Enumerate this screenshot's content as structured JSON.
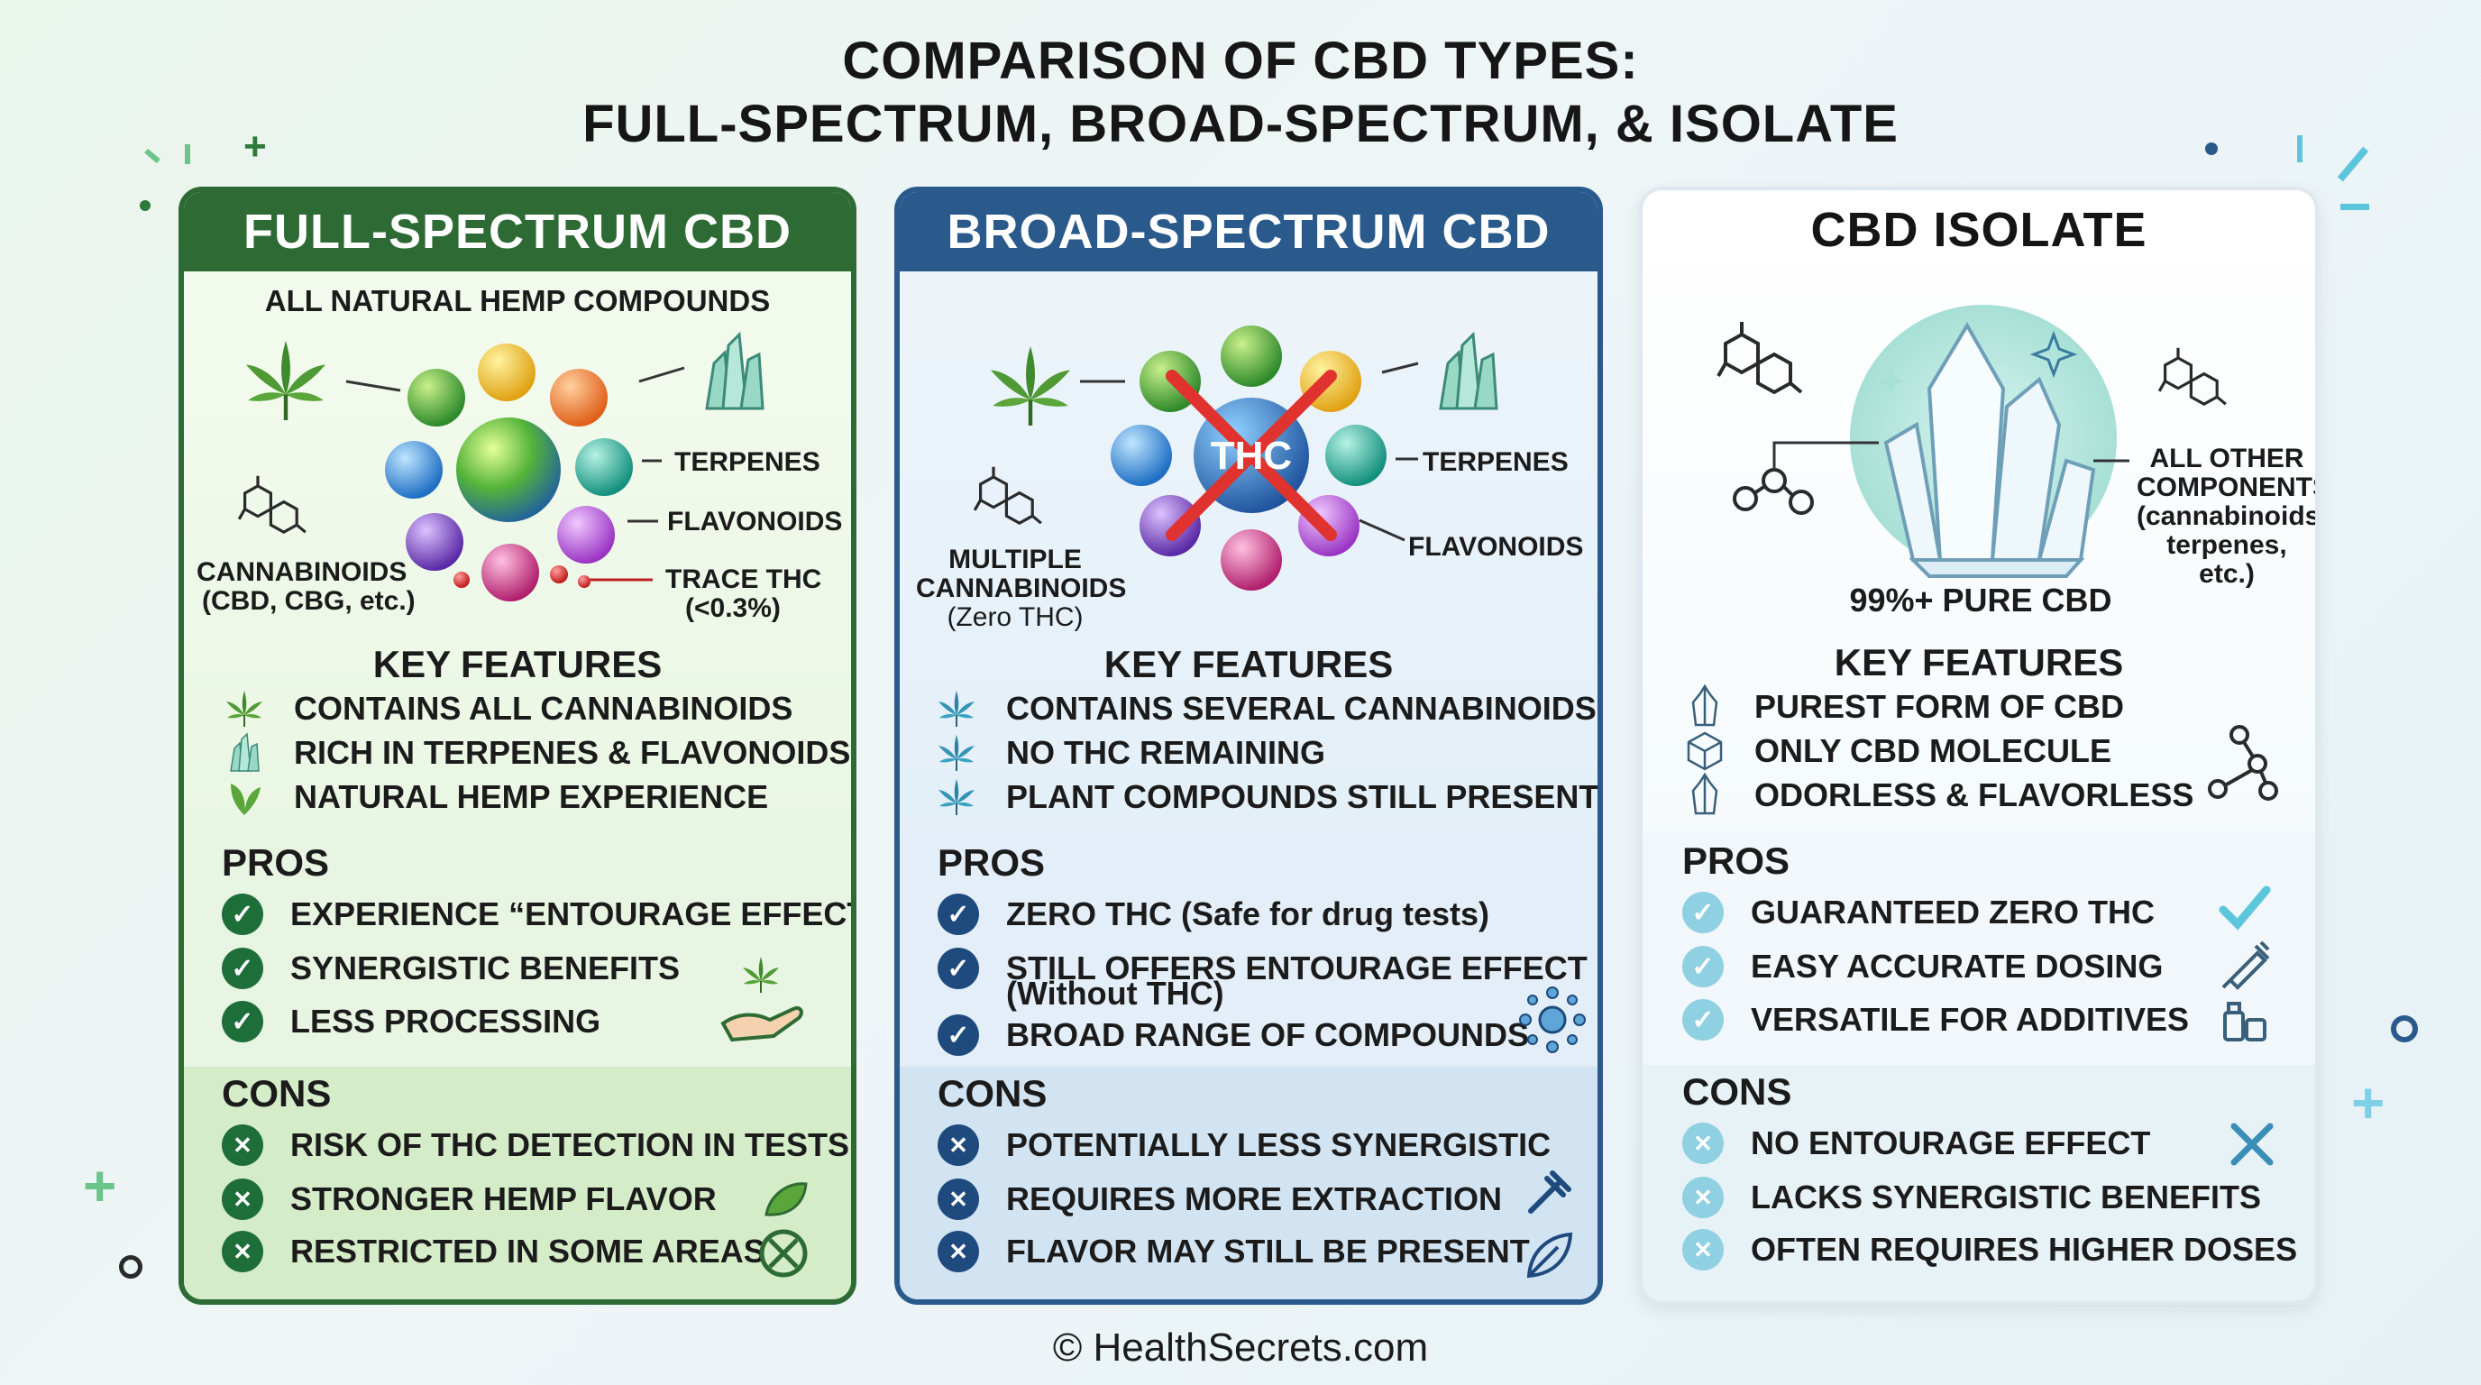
{
  "title": {
    "line1": "COMPARISON OF CBD TYPES:",
    "line2": "FULL-SPECTRUM, BROAD-SPECTRUM, & ISOLATE"
  },
  "colors": {
    "full_header": "#2e6b34",
    "broad_header": "#2a5a8c",
    "isolate_header": "#ffffff",
    "check_green": "#1e6e3a",
    "check_navy": "#1e4a7e",
    "check_light": "#8fd0e2"
  },
  "full": {
    "header": "FULL-SPECTRUM CBD",
    "subtitle": "ALL NATURAL HEMP COMPOUNDS",
    "labels": {
      "terpenes": "TERPENES",
      "flavonoids": "FLAVONOIDS",
      "trace_thc": "TRACE THC",
      "trace_thc_sub": "(<0.3%)",
      "cannabinoids": "CANNABINOIDS",
      "cannabinoids_sub": "(CBD, CBG, etc.)"
    },
    "key_features_title": "KEY FEATURES",
    "features": [
      "CONTAINS ALL CANNABINOIDS",
      "RICH IN TERPENES & FLAVONOIDS",
      "NATURAL HEMP EXPERIENCE"
    ],
    "pros_title": "PROS",
    "pros": [
      "EXPERIENCE “ENTOURAGE EFFECT”",
      "SYNERGISTIC BENEFITS",
      "LESS PROCESSING"
    ],
    "cons_title": "CONS",
    "cons": [
      "RISK OF THC DETECTION IN TESTS",
      "STRONGER HEMP FLAVOR",
      "RESTRICTED IN SOME AREAS"
    ]
  },
  "broad": {
    "header": "BROAD-SPECTRUM CBD",
    "thc_label": "THC",
    "labels": {
      "terpenes": "TERPENES",
      "flavonoids": "FLAVONOIDS",
      "multiple": "MULTIPLE",
      "cannabinoids": "CANNABINOIDS",
      "zero_thc": "(Zero THC)"
    },
    "key_features_title": "KEY FEATURES",
    "features": [
      "CONTAINS SEVERAL CANNABINOIDS",
      "NO THC REMAINING",
      "PLANT COMPOUNDS STILL PRESENT"
    ],
    "pros_title": "PROS",
    "pros": [
      "ZERO THC (Safe for drug tests)",
      "STILL OFFERS ENTOURAGE EFFECT",
      "BROAD RANGE OF COMPOUNDS"
    ],
    "pros_2_line2": "(Without THC)",
    "cons_title": "CONS",
    "cons": [
      "POTENTIALLY LESS SYNERGISTIC",
      "REQUIRES MORE EXTRACTION",
      "FLAVOR MAY STILL BE PRESENT"
    ]
  },
  "isolate": {
    "header": "CBD ISOLATE",
    "labels": {
      "all_other": "ALL OTHER",
      "components": "COMPONENTS",
      "cannabinoids_paren": "(cannabinoids,",
      "terpenes_paren": "terpenes, etc.)",
      "pure": "99%+ PURE CBD"
    },
    "key_features_title": "KEY FEATURES",
    "features": [
      "PUREST FORM OF CBD",
      "ONLY CBD MOLECULE",
      "ODORLESS & FLAVORLESS"
    ],
    "pros_title": "PROS",
    "pros": [
      "GUARANTEED ZERO THC",
      "EASY ACCURATE DOSING",
      "VERSATILE FOR ADDITIVES"
    ],
    "cons_title": "CONS",
    "cons": [
      "NO ENTOURAGE EFFECT",
      "LACKS SYNERGISTIC BENEFITS",
      "OFTEN REQUIRES HIGHER DOSES"
    ]
  },
  "footer": "© HealthSecrets.com"
}
